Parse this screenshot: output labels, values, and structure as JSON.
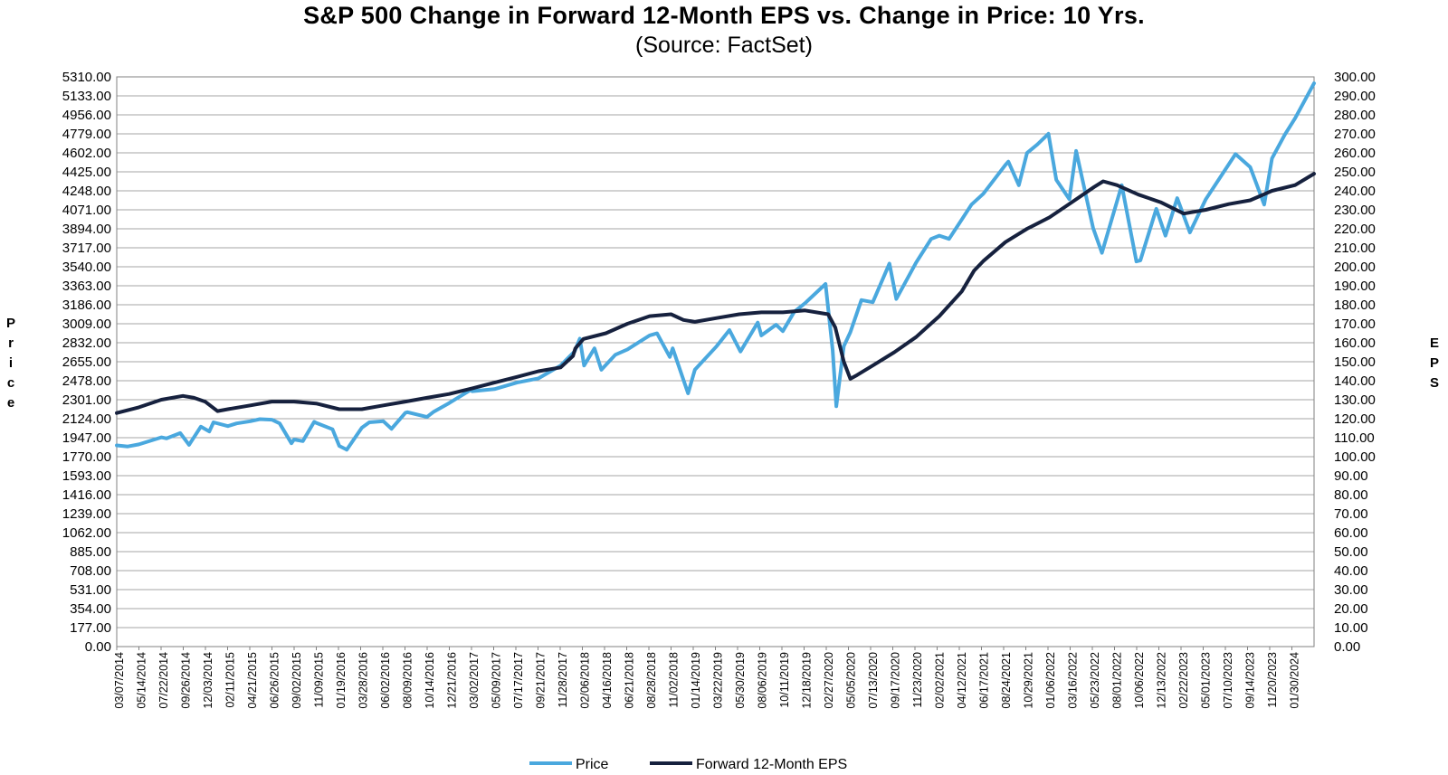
{
  "chart_data": {
    "type": "line",
    "title": "S&P 500 Change in Forward 12-Month EPS vs. Change in Price: 10 Yrs.",
    "subtitle": "(Source: FactSet)",
    "ylabel": "Price",
    "y2label": "EPS",
    "ylim": [
      0,
      5310
    ],
    "y2lim": [
      0,
      300
    ],
    "grid": true,
    "legend_position": "bottom",
    "y_ticks": [
      "0.00",
      "177.00",
      "354.00",
      "531.00",
      "708.00",
      "885.00",
      "1062.00",
      "1239.00",
      "1416.00",
      "1593.00",
      "1770.00",
      "1947.00",
      "2124.00",
      "2301.00",
      "2478.00",
      "2655.00",
      "2832.00",
      "3009.00",
      "3186.00",
      "3363.00",
      "3540.00",
      "3717.00",
      "3894.00",
      "4071.00",
      "4248.00",
      "4425.00",
      "4602.00",
      "4779.00",
      "4956.00",
      "5133.00",
      "5310.00"
    ],
    "y2_ticks": [
      "0.00",
      "10.00",
      "20.00",
      "30.00",
      "40.00",
      "50.00",
      "60.00",
      "70.00",
      "80.00",
      "90.00",
      "100.00",
      "110.00",
      "120.00",
      "130.00",
      "140.00",
      "150.00",
      "160.00",
      "170.00",
      "180.00",
      "190.00",
      "200.00",
      "210.00",
      "220.00",
      "230.00",
      "240.00",
      "250.00",
      "260.00",
      "270.00",
      "280.00",
      "290.00",
      "300.00"
    ],
    "x_ticks": [
      "03/07/2014",
      "05/14/2014",
      "07/22/2014",
      "09/26/2014",
      "12/03/2014",
      "02/11/2015",
      "04/21/2015",
      "06/26/2015",
      "09/02/2015",
      "11/09/2015",
      "01/19/2016",
      "03/28/2016",
      "06/02/2016",
      "08/09/2016",
      "10/14/2016",
      "12/21/2016",
      "03/02/2017",
      "05/09/2017",
      "07/17/2017",
      "09/21/2017",
      "11/28/2017",
      "02/06/2018",
      "04/16/2018",
      "06/21/2018",
      "08/28/2018",
      "11/02/2018",
      "01/14/2019",
      "03/22/2019",
      "05/30/2019",
      "08/06/2019",
      "10/11/2019",
      "12/18/2019",
      "02/27/2020",
      "05/05/2020",
      "07/13/2020",
      "09/17/2020",
      "11/23/2020",
      "02/02/2021",
      "04/12/2021",
      "06/17/2021",
      "08/24/2021",
      "10/29/2021",
      "01/06/2022",
      "03/16/2022",
      "05/23/2022",
      "08/01/2022",
      "10/06/2022",
      "12/13/2022",
      "02/22/2023",
      "05/01/2023",
      "07/10/2023",
      "09/14/2023",
      "11/20/2023",
      "01/30/2024"
    ],
    "series": [
      {
        "name": "Price",
        "color": "#4aa8de",
        "axis": "left",
        "x": [
          "03/07/2014",
          "04/10/2014",
          "05/14/2014",
          "07/22/2014",
          "08/07/2014",
          "09/18/2014",
          "10/15/2014",
          "11/20/2014",
          "12/16/2014",
          "12/29/2014",
          "02/11/2015",
          "03/10/2015",
          "04/21/2015",
          "05/20/2015",
          "06/26/2015",
          "07/20/2015",
          "08/25/2015",
          "09/02/2015",
          "09/29/2015",
          "11/03/2015",
          "11/09/2015",
          "12/29/2015",
          "01/19/2016",
          "02/11/2016",
          "03/28/2016",
          "04/20/2016",
          "06/02/2016",
          "06/27/2016",
          "08/09/2016",
          "08/15/2016",
          "10/14/2016",
          "11/04/2016",
          "12/21/2016",
          "03/01/2017",
          "03/02/2017",
          "05/09/2017",
          "07/17/2017",
          "09/21/2017",
          "11/28/2017",
          "01/10/2018",
          "01/26/2018",
          "02/08/2018",
          "03/12/2018",
          "04/02/2018",
          "05/15/2018",
          "06/21/2018",
          "08/28/2018",
          "09/20/2018",
          "10/29/2018",
          "11/07/2018",
          "12/24/2018",
          "01/14/2019",
          "03/22/2019",
          "04/30/2019",
          "06/03/2019",
          "07/26/2019",
          "08/06/2019",
          "09/20/2019",
          "10/11/2019",
          "11/15/2019",
          "12/18/2019",
          "02/19/2020",
          "03/12/2020",
          "03/23/2020",
          "04/15/2020",
          "05/05/2020",
          "06/08/2020",
          "07/13/2020",
          "09/02/2020",
          "09/23/2020",
          "11/23/2020",
          "01/08/2021",
          "02/02/2021",
          "03/04/2021",
          "04/12/2021",
          "05/12/2021",
          "06/17/2021",
          "08/24/2021",
          "09/02/2021",
          "10/04/2021",
          "10/29/2021",
          "11/30/2021",
          "01/03/2022",
          "01/27/2022",
          "03/08/2022",
          "03/29/2022",
          "05/20/2022",
          "06/16/2022",
          "08/16/2022",
          "09/30/2022",
          "10/12/2022",
          "11/30/2022",
          "12/28/2022",
          "02/02/2023",
          "03/13/2023",
          "05/01/2023",
          "07/31/2023",
          "09/14/2023",
          "10/27/2023",
          "11/20/2023",
          "12/29/2023",
          "01/30/2024",
          "03/28/2024"
        ],
        "values": [
          1875,
          1865,
          1885,
          1950,
          1940,
          1990,
          1880,
          2050,
          2005,
          2090,
          2055,
          2080,
          2100,
          2120,
          2115,
          2080,
          1895,
          1930,
          1915,
          2095,
          2085,
          2025,
          1870,
          1835,
          2040,
          2090,
          2100,
          2030,
          2180,
          2185,
          2140,
          2190,
          2270,
          2400,
          2380,
          2400,
          2460,
          2500,
          2620,
          2750,
          2870,
          2620,
          2780,
          2580,
          2720,
          2770,
          2900,
          2920,
          2700,
          2780,
          2360,
          2580,
          2800,
          2950,
          2750,
          3020,
          2900,
          3000,
          2940,
          3120,
          3200,
          3380,
          2760,
          2240,
          2800,
          2930,
          3230,
          3210,
          3570,
          3240,
          3580,
          3800,
          3830,
          3800,
          3980,
          4120,
          4220,
          4490,
          4520,
          4300,
          4600,
          4680,
          4780,
          4350,
          4170,
          4620,
          3900,
          3670,
          4300,
          3590,
          3600,
          4080,
          3830,
          4180,
          3860,
          4170,
          4590,
          4470,
          4120,
          4550,
          4770,
          4925,
          5250
        ]
      },
      {
        "name": "Forward 12-Month EPS",
        "color": "#16213e",
        "axis": "right",
        "x": [
          "03/07/2014",
          "05/14/2014",
          "07/22/2014",
          "09/26/2014",
          "10/30/2014",
          "12/03/2014",
          "01/10/2015",
          "02/11/2015",
          "04/21/2015",
          "06/26/2015",
          "09/02/2015",
          "11/09/2015",
          "01/19/2016",
          "03/28/2016",
          "06/02/2016",
          "08/09/2016",
          "10/14/2016",
          "12/21/2016",
          "03/02/2017",
          "05/09/2017",
          "07/17/2017",
          "09/21/2017",
          "11/28/2017",
          "01/05/2018",
          "01/12/2018",
          "02/06/2018",
          "04/16/2018",
          "06/21/2018",
          "08/28/2018",
          "11/02/2018",
          "12/10/2018",
          "01/14/2019",
          "03/22/2019",
          "05/30/2019",
          "08/06/2019",
          "10/11/2019",
          "12/18/2019",
          "02/27/2020",
          "03/20/2020",
          "04/15/2020",
          "05/05/2020",
          "05/26/2020",
          "07/13/2020",
          "09/17/2020",
          "11/23/2020",
          "02/02/2021",
          "04/12/2021",
          "05/20/2021",
          "06/17/2021",
          "08/24/2021",
          "10/29/2021",
          "01/06/2022",
          "03/16/2022",
          "05/23/2022",
          "06/20/2022",
          "08/01/2022",
          "10/06/2022",
          "12/13/2022",
          "02/22/2023",
          "05/01/2023",
          "07/10/2023",
          "09/14/2023",
          "11/20/2023",
          "01/30/2024",
          "03/28/2024"
        ],
        "values": [
          123,
          126,
          130,
          132,
          131,
          129,
          124,
          125,
          127,
          129,
          129,
          128,
          125,
          125,
          127,
          129,
          131,
          133,
          136,
          139,
          142,
          145,
          147,
          153,
          157,
          162,
          165,
          170,
          174,
          175,
          172,
          171,
          173,
          175,
          176,
          176,
          177,
          175,
          168,
          150,
          141,
          143,
          148,
          155,
          163,
          174,
          187,
          198,
          203,
          213,
          220,
          226,
          234,
          242,
          245,
          243,
          238,
          234,
          228,
          230,
          233,
          235,
          240,
          243,
          249
        ]
      }
    ]
  }
}
